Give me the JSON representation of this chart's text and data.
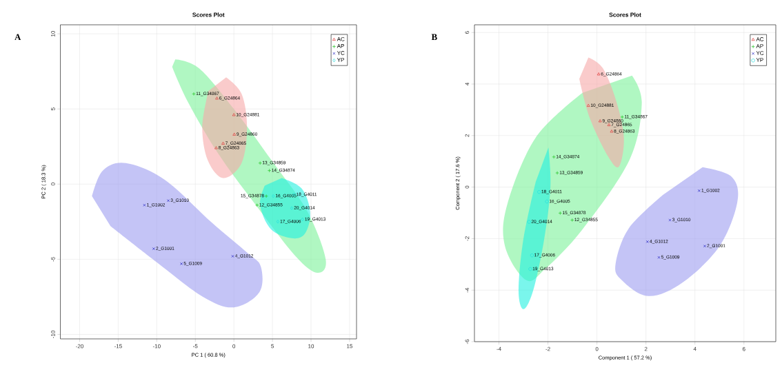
{
  "chart_data": [
    {
      "type": "scatter",
      "title": "Scores Plot",
      "xlabel": "PC 1 ( 60.8 %)",
      "ylabel": "PC 2 ( 18.3 %)",
      "xlim": [
        -22.5,
        15.9
      ],
      "ylim": [
        -10.3,
        10.6
      ],
      "xticks": [
        -20,
        -15,
        -10,
        -5,
        0,
        5,
        10,
        15
      ],
      "yticks": [
        -10,
        -5,
        0,
        5,
        10
      ],
      "grid": true,
      "legend": "top right",
      "series": [
        {
          "type": "area",
          "color": "#7cf29a",
          "x": [
            -7.6,
            -4.5,
            0,
            5,
            9.5,
            11.9,
            10.8,
            8,
            3,
            -2,
            -6,
            -8.0
          ],
          "values": [
            8.3,
            7.7,
            5.0,
            1.5,
            -1.8,
            -5.0,
            -5.9,
            -4.8,
            -1.5,
            2,
            5.5,
            7.8
          ]
        },
        {
          "type": "area",
          "color": "#f7a8a8",
          "x": [
            -1.0,
            1.0,
            1.7,
            1.0,
            -1.4,
            -3.4,
            -4.1,
            -3.3
          ],
          "values": [
            7.1,
            6.0,
            3.8,
            1.4,
            0.4,
            1.6,
            3.8,
            6.2
          ]
        },
        {
          "type": "area",
          "color": "#9c9cf0",
          "x": [
            -18.4,
            -17,
            -14,
            -9,
            -3,
            1.8,
            3.5,
            3.3,
            0,
            -4,
            -10,
            -16
          ],
          "values": [
            -0.8,
            0.9,
            1.4,
            0.3,
            -2.5,
            -4.6,
            -5.5,
            -7.2,
            -8.2,
            -7.5,
            -5.2,
            -2.8
          ]
        },
        {
          "type": "area",
          "color": "#22f0e0",
          "x": [
            6.2,
            8.8,
            9.9,
            9.2,
            7.5,
            4.8,
            3.4,
            4.0
          ],
          "values": [
            0.4,
            -0.3,
            -1.9,
            -3.3,
            -3.6,
            -3.0,
            -1.4,
            -0.1
          ]
        },
        {
          "name": "AC",
          "color": "#df3a3a",
          "marker": "triangle",
          "x": [
            -2.2,
            0.0,
            0.05,
            -1.4,
            -2.3
          ],
          "values": [
            5.7,
            4.6,
            3.3,
            2.7,
            2.4
          ]
        },
        {
          "name": "AP",
          "color": "#22c322",
          "marker": "plus",
          "x": [
            -5.2,
            3.4,
            4.6,
            4.2,
            3.0
          ],
          "values": [
            6.0,
            1.4,
            0.9,
            -0.8,
            -1.4
          ]
        },
        {
          "name": "YC",
          "color": "#2020c0",
          "marker": "cross",
          "x": [
            -11.6,
            -8.5,
            -10.4,
            -6.8,
            -0.15
          ],
          "values": [
            -1.4,
            -1.1,
            -4.3,
            -5.3,
            -4.8
          ]
        },
        {
          "name": "YP",
          "color": "#22dede",
          "marker": "diamond",
          "x": [
            5.1,
            7.8,
            7.5,
            5.7,
            8.9
          ],
          "values": [
            -0.8,
            -0.7,
            -1.6,
            -2.5,
            -2.35
          ]
        }
      ],
      "annotations": [
        "A",
        {
          "text": "6_G24864",
          "x": -2.2,
          "y": 5.7
        },
        {
          "text": "10_G24881",
          "x": 0.0,
          "y": 4.6
        },
        {
          "text": "9_G24860",
          "x": 0.05,
          "y": 3.3
        },
        {
          "text": "7_G24865",
          "x": -1.4,
          "y": 2.7
        },
        {
          "text": "8_G24863",
          "x": -2.3,
          "y": 2.4
        },
        {
          "text": "11_G34867",
          "x": -5.2,
          "y": 6.0
        },
        {
          "text": "13_G34859",
          "x": 3.4,
          "y": 1.4
        },
        {
          "text": "14_G34874",
          "x": 4.6,
          "y": 0.9
        },
        {
          "text": "15_G34878",
          "x": 4.2,
          "y": -0.8
        },
        {
          "text": "12_G34855",
          "x": 3.0,
          "y": -1.4
        },
        {
          "text": "1_G1002",
          "x": -11.6,
          "y": -1.4
        },
        {
          "text": "3_G1010",
          "x": -8.5,
          "y": -1.1
        },
        {
          "text": "2_G1001",
          "x": -10.4,
          "y": -4.3
        },
        {
          "text": "5_G1009",
          "x": -6.8,
          "y": -5.3
        },
        {
          "text": "4_G1012",
          "x": -0.15,
          "y": -4.8
        },
        {
          "text": "16_G4005",
          "x": 5.1,
          "y": -0.8
        },
        {
          "text": "18_G4011",
          "x": 7.8,
          "y": -0.7
        },
        {
          "text": "20_G4014",
          "x": 7.5,
          "y": -1.6
        },
        {
          "text": "17_G4006",
          "x": 5.7,
          "y": -2.5
        },
        {
          "text": "19_G4013",
          "x": 8.9,
          "y": -2.35
        }
      ]
    },
    {
      "type": "scatter",
      "title": "Scores Plot",
      "xlabel": "Component 1 ( 57.2 %)",
      "ylabel": "Component 2 ( 17.6 %)",
      "xlim": [
        -5.0,
        7.3
      ],
      "ylim": [
        -6.0,
        6.3
      ],
      "xticks": [
        -4,
        -2,
        0,
        2,
        4,
        6
      ],
      "yticks": [
        -6,
        -4,
        -2,
        0,
        2,
        4,
        6
      ],
      "grid": true,
      "legend": "top right",
      "series": [
        {
          "type": "area",
          "color": "#7cf29a",
          "x": [
            1.43,
            1.83,
            1.33,
            -0.59,
            -2.12,
            -2.89,
            -3.75,
            -3.66,
            -2.5,
            -0.59
          ],
          "values": [
            4.33,
            3.27,
            1.06,
            -1.64,
            -3.18,
            -3.61,
            -2.31,
            -0.67,
            1.92,
            3.66
          ]
        },
        {
          "type": "area",
          "color": "#f7a8a8",
          "x": [
            -0.35,
            0.25,
            0.8,
            1.1,
            0.9,
            0.45,
            -0.3,
            -0.72
          ],
          "values": [
            5.03,
            4.6,
            3.3,
            1.9,
            0.8,
            1.2,
            2.7,
            4.2
          ]
        },
        {
          "type": "area",
          "color": "#22f0e0",
          "x": [
            -1.98,
            -1.9,
            -2.15,
            -2.6,
            -3.0,
            -3.2,
            -3.0,
            -2.5
          ],
          "values": [
            1.54,
            0.0,
            -2.0,
            -4.0,
            -4.74,
            -4.0,
            -2.0,
            0.2
          ]
        },
        {
          "type": "area",
          "color": "#9c9cf0",
          "x": [
            4.31,
            5.5,
            5.73,
            5.0,
            3.5,
            2.1,
            1.0,
            0.76,
            1.3,
            2.7
          ],
          "values": [
            0.77,
            0.4,
            -0.58,
            -2.3,
            -3.7,
            -4.23,
            -3.6,
            -2.98,
            -1.6,
            -0.3
          ]
        },
        {
          "name": "AC",
          "color": "#df3a3a",
          "marker": "triangle",
          "x": [
            0.07,
            -0.35,
            0.13,
            0.49,
            0.6
          ],
          "values": [
            4.38,
            3.16,
            2.56,
            2.41,
            2.16
          ]
        },
        {
          "name": "AP",
          "color": "#22c322",
          "marker": "plus",
          "x": [
            1.03,
            -1.76,
            -1.62,
            -1.5,
            -1.01
          ],
          "values": [
            2.72,
            1.17,
            0.55,
            -1.01,
            -1.28
          ]
        },
        {
          "name": "YC",
          "color": "#2020c0",
          "marker": "cross",
          "x": [
            4.17,
            2.98,
            2.06,
            4.4,
            2.53
          ],
          "values": [
            -0.14,
            -1.28,
            -2.12,
            -2.29,
            -2.73
          ]
        },
        {
          "name": "YP",
          "color": "#22dede",
          "marker": "circle",
          "x": [
            -2.36,
            -2.04,
            -2.77,
            -2.65,
            -2.72
          ],
          "values": [
            -0.19,
            -0.56,
            -1.35,
            -2.65,
            -3.18
          ]
        }
      ],
      "annotations": [
        "B",
        {
          "text": "6_G24864",
          "x": 0.07,
          "y": 4.38
        },
        {
          "text": "10_G24881",
          "x": -0.35,
          "y": 3.16
        },
        {
          "text": "9_G24860",
          "x": 0.13,
          "y": 2.56
        },
        {
          "text": "7_G24865",
          "x": 0.49,
          "y": 2.41
        },
        {
          "text": "8_G24863",
          "x": 0.6,
          "y": 2.16
        },
        {
          "text": "11_G34867",
          "x": 1.03,
          "y": 2.72
        },
        {
          "text": "14_G34874",
          "x": -1.76,
          "y": 1.17
        },
        {
          "text": "13_G34859",
          "x": -1.62,
          "y": 0.55
        },
        {
          "text": "15_G34878",
          "x": -1.5,
          "y": -1.01
        },
        {
          "text": "12_G34855",
          "x": -1.01,
          "y": -1.28
        },
        {
          "text": "1_G1002",
          "x": 4.17,
          "y": -0.14
        },
        {
          "text": "3_G1010",
          "x": 2.98,
          "y": -1.28
        },
        {
          "text": "4_G1012",
          "x": 2.06,
          "y": -2.12
        },
        {
          "text": "2_G1001",
          "x": 4.4,
          "y": -2.29
        },
        {
          "text": "5_G1009",
          "x": 2.53,
          "y": -2.73
        },
        {
          "text": "18_G4011",
          "x": -2.36,
          "y": -0.19
        },
        {
          "text": "16_G4005",
          "x": -2.04,
          "y": -0.56
        },
        {
          "text": "20_G4014",
          "x": -2.77,
          "y": -1.35
        },
        {
          "text": "17_G4006",
          "x": -2.65,
          "y": -2.65
        },
        {
          "text": "19_G4013",
          "x": -2.72,
          "y": -3.18
        }
      ]
    }
  ]
}
